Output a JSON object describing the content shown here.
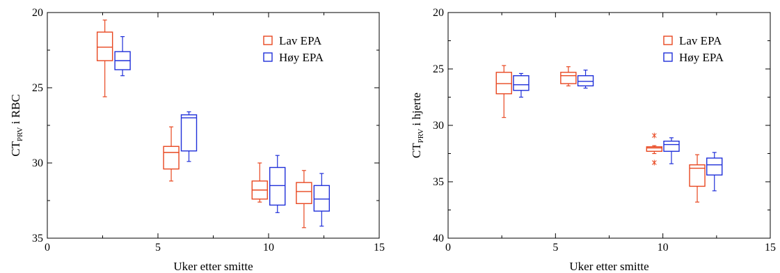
{
  "colors": {
    "lav": "#e8461f",
    "hoy": "#1f2fd9",
    "axis": "#000000"
  },
  "chart_data": [
    {
      "type": "box",
      "xlabel": "Uker etter smitte",
      "ylabel_main": "CT",
      "ylabel_sub": "PRV",
      "ylabel_rest": " i RBC",
      "xlim": [
        0,
        15
      ],
      "ylim": [
        20,
        35
      ],
      "y_inverted": true,
      "xticks": [
        0,
        5,
        10,
        15
      ],
      "yticks": [
        20,
        25,
        30,
        35
      ],
      "legend_position": "top-right",
      "grid": false,
      "series": [
        {
          "name": "Lav EPA",
          "color_key": "lav",
          "boxes": [
            {
              "x": 2.6,
              "min": 20.5,
              "q1": 21.3,
              "median": 22.3,
              "q3": 23.2,
              "max": 25.6
            },
            {
              "x": 5.6,
              "min": 27.6,
              "q1": 28.9,
              "median": 29.3,
              "q3": 30.4,
              "max": 31.2
            },
            {
              "x": 9.6,
              "min": 30.0,
              "q1": 31.2,
              "median": 31.8,
              "q3": 32.4,
              "max": 32.6
            },
            {
              "x": 11.6,
              "min": 30.5,
              "q1": 31.3,
              "median": 31.9,
              "q3": 32.7,
              "max": 34.3
            }
          ]
        },
        {
          "name": "Høy EPA",
          "color_key": "hoy",
          "boxes": [
            {
              "x": 3.4,
              "min": 21.6,
              "q1": 22.6,
              "median": 23.2,
              "q3": 23.8,
              "max": 24.2
            },
            {
              "x": 6.4,
              "min": 26.6,
              "q1": 26.8,
              "median": 27.0,
              "q3": 29.2,
              "max": 29.9
            },
            {
              "x": 10.4,
              "min": 29.5,
              "q1": 30.3,
              "median": 31.5,
              "q3": 32.8,
              "max": 33.3
            },
            {
              "x": 12.4,
              "min": 30.7,
              "q1": 31.5,
              "median": 32.4,
              "q3": 33.2,
              "max": 34.2
            }
          ]
        }
      ]
    },
    {
      "type": "box",
      "xlabel": "Uker etter smitte",
      "ylabel_main": "CT",
      "ylabel_sub": "PRV",
      "ylabel_rest": " i hjerte",
      "xlim": [
        0,
        15
      ],
      "ylim": [
        20,
        40
      ],
      "y_inverted": true,
      "xticks": [
        0,
        5,
        10,
        15
      ],
      "yticks": [
        20,
        25,
        30,
        35,
        40
      ],
      "legend_position": "top-right",
      "grid": false,
      "series": [
        {
          "name": "Lav EPA",
          "color_key": "lav",
          "boxes": [
            {
              "x": 2.6,
              "min": 24.7,
              "q1": 25.3,
              "median": 26.3,
              "q3": 27.2,
              "max": 29.3
            },
            {
              "x": 5.6,
              "min": 24.8,
              "q1": 25.3,
              "median": 25.6,
              "q3": 26.3,
              "max": 26.5
            },
            {
              "x": 9.6,
              "min": 31.8,
              "q1": 31.9,
              "median": 32.0,
              "q3": 32.3,
              "max": 32.5,
              "outliers": [
                30.9,
                33.3
              ]
            },
            {
              "x": 11.6,
              "min": 32.6,
              "q1": 33.5,
              "median": 33.8,
              "q3": 35.4,
              "max": 36.8
            }
          ]
        },
        {
          "name": "Høy EPA",
          "color_key": "hoy",
          "boxes": [
            {
              "x": 3.4,
              "min": 25.4,
              "q1": 25.6,
              "median": 26.4,
              "q3": 26.9,
              "max": 27.5
            },
            {
              "x": 6.4,
              "min": 25.1,
              "q1": 25.6,
              "median": 26.1,
              "q3": 26.5,
              "max": 26.7
            },
            {
              "x": 10.4,
              "min": 31.1,
              "q1": 31.4,
              "median": 31.7,
              "q3": 32.3,
              "max": 33.4
            },
            {
              "x": 12.4,
              "min": 32.4,
              "q1": 32.9,
              "median": 33.5,
              "q3": 34.4,
              "max": 35.8
            }
          ]
        }
      ]
    }
  ]
}
